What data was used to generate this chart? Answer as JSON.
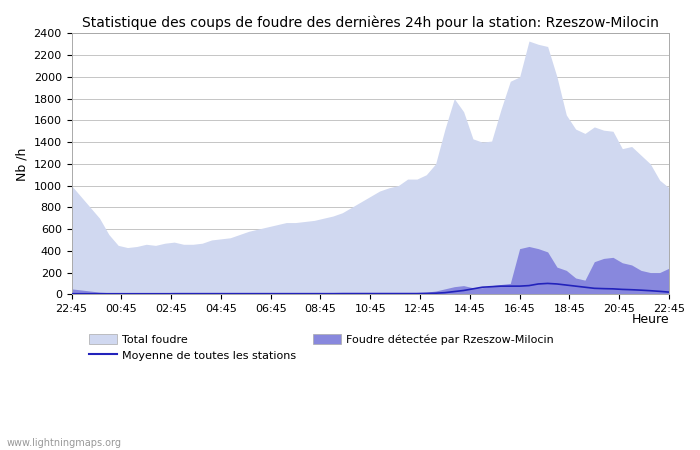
{
  "title": "Statistique des coups de foudre des dernières 24h pour la station: Rzeszow-Milocin",
  "xlabel": "Heure",
  "ylabel": "Nb /h",
  "ylim": [
    0,
    2400
  ],
  "yticks": [
    0,
    200,
    400,
    600,
    800,
    1000,
    1200,
    1400,
    1600,
    1800,
    2000,
    2200,
    2400
  ],
  "xtick_labels": [
    "22:45",
    "00:45",
    "02:45",
    "04:45",
    "06:45",
    "08:45",
    "10:45",
    "12:45",
    "14:45",
    "16:45",
    "18:45",
    "20:45",
    "22:45"
  ],
  "color_total": "#d0d8f0",
  "color_detected": "#8888dd",
  "color_moyenne": "#2222bb",
  "watermark": "www.lightningmaps.org",
  "legend_total": "Total foudre",
  "legend_detected": "Foudre détectée par Rzeszow-Milocin",
  "legend_moyenne": "Moyenne de toutes les stations",
  "total_foudre": [
    1000,
    900,
    800,
    700,
    550,
    450,
    430,
    440,
    460,
    450,
    470,
    480,
    460,
    460,
    470,
    500,
    510,
    520,
    550,
    580,
    600,
    620,
    640,
    660,
    660,
    670,
    680,
    700,
    720,
    750,
    800,
    850,
    900,
    950,
    980,
    1000,
    1060,
    1060,
    1100,
    1200,
    1520,
    1800,
    1680,
    1430,
    1400,
    1410,
    1700,
    1960,
    2000,
    2330,
    2300,
    2280,
    2000,
    1650,
    1520,
    1480,
    1540,
    1510,
    1500,
    1340,
    1360,
    1280,
    1200,
    1050,
    980
  ],
  "detected": [
    50,
    40,
    30,
    20,
    15,
    15,
    12,
    12,
    12,
    12,
    15,
    18,
    18,
    18,
    18,
    18,
    18,
    18,
    18,
    18,
    18,
    18,
    18,
    18,
    18,
    18,
    18,
    18,
    18,
    20,
    20,
    20,
    20,
    20,
    20,
    20,
    20,
    20,
    20,
    30,
    50,
    70,
    80,
    60,
    60,
    80,
    90,
    100,
    420,
    440,
    420,
    390,
    250,
    220,
    150,
    130,
    300,
    330,
    340,
    290,
    270,
    220,
    200,
    200,
    240
  ],
  "moyenne": [
    5,
    5,
    5,
    5,
    5,
    5,
    5,
    5,
    5,
    5,
    5,
    5,
    5,
    5,
    5,
    5,
    5,
    5,
    5,
    5,
    5,
    5,
    5,
    5,
    5,
    5,
    5,
    5,
    5,
    5,
    5,
    5,
    5,
    5,
    5,
    5,
    5,
    5,
    8,
    10,
    15,
    25,
    35,
    50,
    65,
    70,
    75,
    75,
    75,
    80,
    95,
    100,
    95,
    85,
    75,
    65,
    55,
    52,
    50,
    45,
    42,
    38,
    33,
    27,
    20
  ]
}
